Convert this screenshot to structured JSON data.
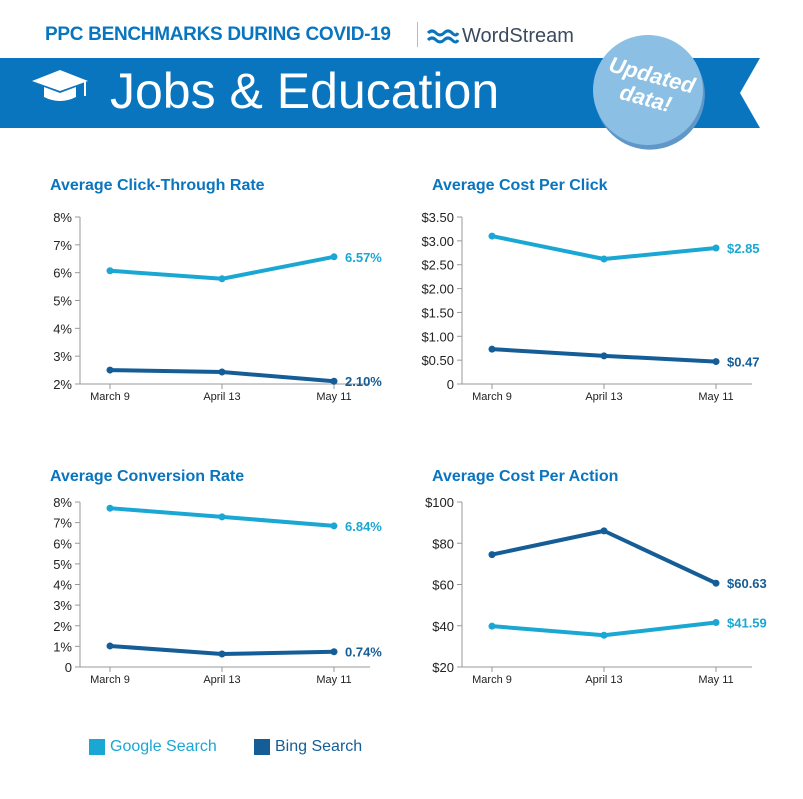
{
  "header": {
    "title": "PPC BENCHMARKS DURING COVID-19",
    "brand": "WordStream",
    "banner_title": "Jobs & Education",
    "badge_line1": "Updated",
    "badge_line2": "data!",
    "icon": "graduation-cap-icon"
  },
  "colors": {
    "google": "#1aa7d4",
    "bing": "#155d96",
    "title": "#0a75bf",
    "banner": "#0a75bf"
  },
  "legend": [
    {
      "label": "Google Search",
      "color": "#1aa7d4"
    },
    {
      "label": "Bing Search",
      "color": "#155d96"
    }
  ],
  "chart_data": [
    {
      "type": "line",
      "title": "Average Click-Through Rate",
      "categories": [
        "March 9",
        "April 13",
        "May 11"
      ],
      "yticks": [
        "2%",
        "3%",
        "4%",
        "5%",
        "6%",
        "7%",
        "8%"
      ],
      "ylim": [
        2,
        8
      ],
      "series": [
        {
          "name": "Google Search",
          "values": [
            6.07,
            5.78,
            6.57
          ],
          "end_label": "6.57%"
        },
        {
          "name": "Bing Search",
          "values": [
            2.5,
            2.43,
            2.1
          ],
          "end_label": "2.10%"
        }
      ]
    },
    {
      "type": "line",
      "title": "Average Cost Per Click",
      "categories": [
        "March 9",
        "April 13",
        "May 11"
      ],
      "yticks": [
        "0",
        "$0.50",
        "$1.00",
        "$1.50",
        "$2.00",
        "$2.50",
        "$3.00",
        "$3.50"
      ],
      "ylim": [
        0,
        3.5
      ],
      "series": [
        {
          "name": "Google Search",
          "values": [
            3.1,
            2.62,
            2.85
          ],
          "end_label": "$2.85"
        },
        {
          "name": "Bing Search",
          "values": [
            0.73,
            0.59,
            0.47
          ],
          "end_label": "$0.47"
        }
      ]
    },
    {
      "type": "line",
      "title": "Average Conversion Rate",
      "categories": [
        "March 9",
        "April 13",
        "May 11"
      ],
      "yticks": [
        "0",
        "1%",
        "2%",
        "3%",
        "4%",
        "5%",
        "6%",
        "7%",
        "8%"
      ],
      "ylim": [
        0,
        8
      ],
      "series": [
        {
          "name": "Google Search",
          "values": [
            7.7,
            7.28,
            6.84
          ],
          "end_label": "6.84%"
        },
        {
          "name": "Bing Search",
          "values": [
            1.02,
            0.63,
            0.74
          ],
          "end_label": "0.74%"
        }
      ]
    },
    {
      "type": "line",
      "title": "Average Cost Per Action",
      "categories": [
        "March 9",
        "April 13",
        "May 11"
      ],
      "yticks": [
        "$20",
        "$40",
        "$60",
        "$80",
        "$100"
      ],
      "ylim": [
        20,
        100
      ],
      "series": [
        {
          "name": "Google Search",
          "values": [
            39.8,
            35.4,
            41.59
          ],
          "end_label": "$41.59"
        },
        {
          "name": "Bing Search",
          "values": [
            74.5,
            86,
            60.63
          ],
          "end_label": "$60.63"
        }
      ]
    }
  ]
}
